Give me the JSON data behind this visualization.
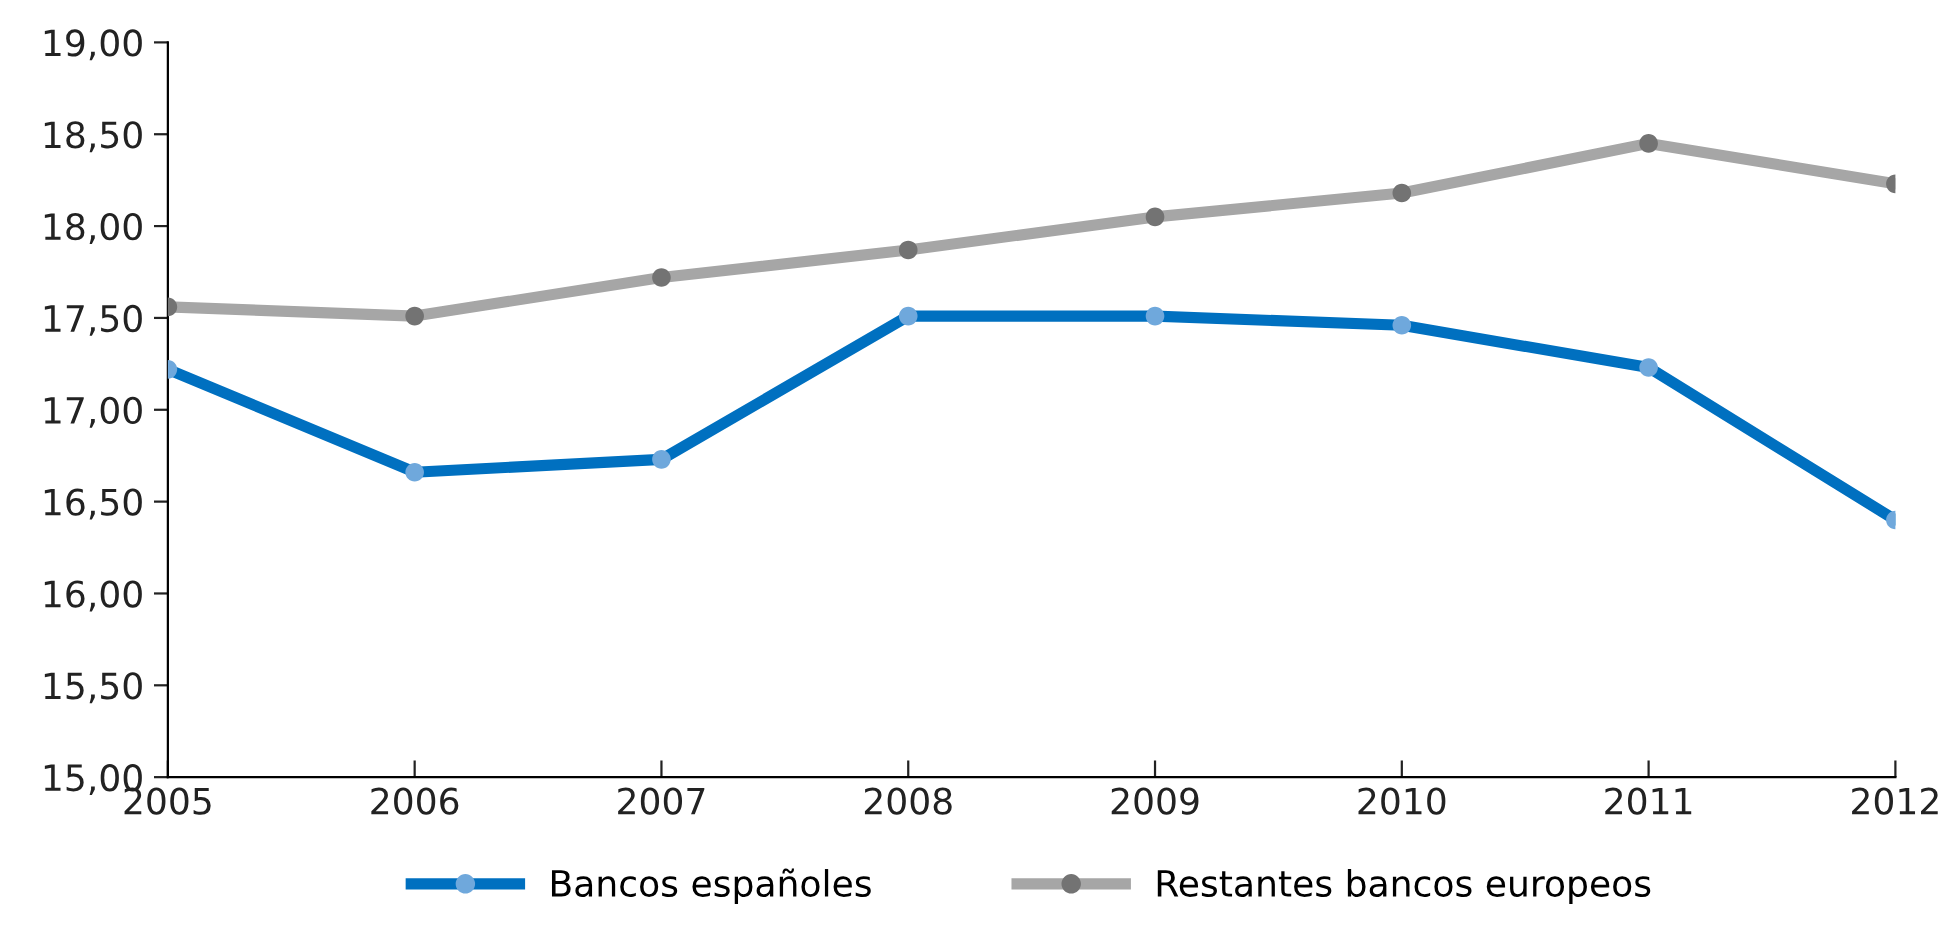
{
  "chart_data": {
    "type": "line",
    "x": [
      2005,
      2006,
      2007,
      2008,
      2009,
      2010,
      2011,
      2012
    ],
    "series": [
      {
        "name": "Bancos españoles",
        "color": "#0070c0",
        "colors": [
          "#6fa8dc",
          "#6fa8dc",
          "#6fa8dc",
          "#6fa8dc",
          "#6fa8dc",
          "#6fa8dc",
          "#6fa8dc",
          "#6fa8dc"
        ],
        "values": [
          17.22,
          16.66,
          16.73,
          17.51,
          17.51,
          17.46,
          17.23,
          16.4
        ]
      },
      {
        "name": "Restantes bancos europeos",
        "color": "#a6a6a6",
        "colors": [
          "#737373",
          "#737373",
          "#737373",
          "#737373",
          "#737373",
          "#737373",
          "#737373",
          "#737373"
        ],
        "values": [
          17.56,
          17.51,
          17.72,
          17.87,
          18.05,
          18.18,
          18.45,
          18.23
        ]
      }
    ],
    "xlim": [
      2005,
      2012
    ],
    "xticks": [
      2005,
      2006,
      2007,
      2008,
      2009,
      2010,
      2011,
      2012
    ],
    "ylim": [
      15,
      19
    ],
    "yticks": [
      {
        "value": 15,
        "label": "15,00"
      },
      {
        "value": 15.5,
        "label": "15,50"
      },
      {
        "value": 16,
        "label": "16,00"
      },
      {
        "value": 16.5,
        "label": "16,50"
      },
      {
        "value": 17,
        "label": "17,00"
      },
      {
        "value": 17.5,
        "label": "17,50"
      },
      {
        "value": 18,
        "label": "18,00"
      },
      {
        "value": 18.5,
        "label": "18,50"
      },
      {
        "value": 19,
        "label": "19,00"
      }
    ],
    "marker": "circle",
    "line_style": "solid",
    "grid": false,
    "legend": "bottom"
  }
}
